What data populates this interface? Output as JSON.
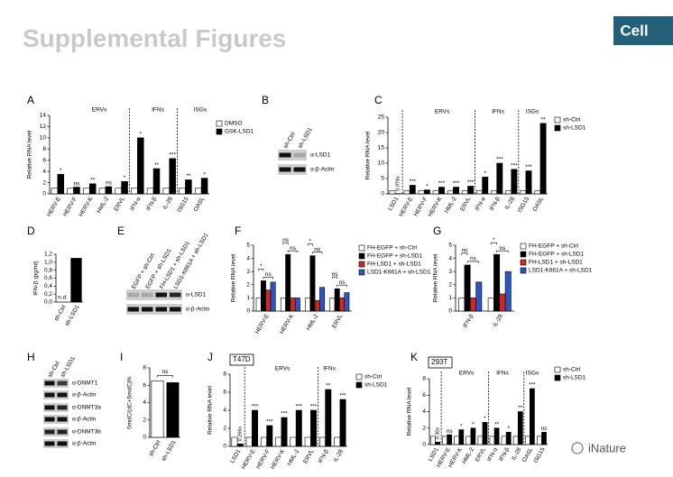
{
  "header": {
    "title": "Supplemental Figures",
    "journal": "Cell"
  },
  "watermark": "iNature",
  "blots": [
    {
      "panel": "B",
      "lanes": [
        "sh-Ctrl",
        "sh-LSD1"
      ],
      "rows": [
        "α-LSD1",
        "α-β-Actin"
      ]
    },
    {
      "panel": "E",
      "lanes": [
        "EGFP + sh-Ctrl",
        "EGFP + sh-LSD1",
        "FH-LSD1 + sh-LSD1",
        "LSD1-K661A + sh-LSD1"
      ],
      "rows": [
        "α-LSD1",
        "α-β-Actin"
      ]
    },
    {
      "panel": "H",
      "lanes": [
        "sh-Ctrl",
        "sh-LSD1"
      ],
      "rows": [
        "α-DNMT1",
        "α-β-Actin",
        "α-DNMT3a",
        "α-β-Actin",
        "α-DNMT3b",
        "α-β-Actin"
      ]
    }
  ],
  "chart_data": [
    {
      "type": "bar",
      "panel": "A",
      "ylabel": "Relative RNA level",
      "groups": [
        "ERVs",
        "IFNs",
        "ISGs"
      ],
      "categories": [
        "HERV-E",
        "HERV-F",
        "HERV-K",
        "HML-2",
        "ERVL",
        "IFN-α",
        "IFN-β",
        "IL-28",
        "ISG15",
        "OASL"
      ],
      "series": [
        {
          "name": "DMSO",
          "color": "#ffffff",
          "values": [
            1,
            1,
            1,
            1,
            1,
            1,
            1,
            1,
            1,
            1
          ]
        },
        {
          "name": "GSK-LSD1",
          "color": "#000000",
          "values": [
            3.5,
            1.2,
            1.8,
            1.3,
            2.2,
            10,
            4.5,
            6.3,
            2.5,
            2.8
          ],
          "significance": [
            "*",
            "ns",
            "**",
            "ns",
            "*",
            "*",
            "**",
            "***",
            "**",
            "*"
          ]
        }
      ],
      "ylim": [
        0,
        14
      ],
      "yticks": [
        0,
        2,
        4,
        6,
        8,
        10,
        12,
        14
      ]
    },
    {
      "type": "bar",
      "panel": "C",
      "ylabel": "Relative RNA level",
      "groups": [
        "ERVs",
        "IFNs",
        "ISGs"
      ],
      "categories": [
        "LSD1",
        "HERV-E",
        "HERV-F",
        "HERV-K",
        "HML-2",
        "ERVL",
        "IFN-α",
        "IFN-β",
        "IL-28",
        "ISG15",
        "OASL"
      ],
      "series": [
        {
          "name": "sh-Ctrl",
          "color": "#ffffff",
          "values": [
            1,
            1,
            1,
            1,
            1,
            1,
            1,
            1,
            1,
            1,
            1
          ]
        },
        {
          "name": "sh-LSD1",
          "color": "#000000",
          "values": [
            0.078,
            2.8,
            1.3,
            2.2,
            2.2,
            2.5,
            5.5,
            10,
            8,
            7.5,
            23
          ],
          "value_labels": [
            "0.078x",
            null,
            null,
            null,
            null,
            null,
            null,
            null,
            null,
            null,
            null
          ],
          "significance": [
            null,
            "***",
            "*",
            "***",
            "***",
            "***",
            "*",
            "***",
            "***",
            "***",
            "**"
          ]
        }
      ],
      "ylim": [
        0,
        25
      ],
      "yticks": [
        0,
        5,
        10,
        15,
        20,
        25
      ]
    },
    {
      "type": "bar",
      "panel": "D",
      "ylabel": "IFN-β (pg/ml)",
      "categories": [
        "sh-Ctrl",
        "sh-LSD1"
      ],
      "values": [
        null,
        1.1
      ],
      "annotations": [
        "n.d.",
        null
      ],
      "colors": [
        "#000000",
        "#000000"
      ],
      "ylim": [
        0,
        1.2
      ],
      "yticks": [
        {
          "value": 0,
          "label": "0,0"
        },
        {
          "value": 0.2,
          "label": "0,2"
        },
        {
          "value": 0.4,
          "label": "0,4"
        },
        {
          "value": 0.6,
          "label": "0,6"
        },
        {
          "value": 0.8,
          "label": "0,8"
        },
        {
          "value": 1,
          "label": "1,0"
        },
        {
          "value": 1.2,
          "label": "1,2"
        }
      ]
    },
    {
      "type": "bar",
      "panel": "F",
      "ylabel": "Relative RNA level",
      "categories": [
        "HERV-E",
        "HERV-K",
        "HML-2",
        "ERVL"
      ],
      "series": [
        {
          "name": "FH-EGFP + sh-Ctrl",
          "color": "#ffffff",
          "values": [
            1,
            1,
            1,
            1
          ]
        },
        {
          "name": "FH-EGFP + sh-LSD1",
          "color": "#000000",
          "values": [
            2.3,
            4.3,
            4.2,
            1.7
          ]
        },
        {
          "name": "FH-LSD1 + sh-LSD1",
          "color": "#d7261e",
          "values": [
            1.6,
            1,
            0.8,
            1
          ]
        },
        {
          "name": "LSD1-K661A + sh-LSD1",
          "color": "#2b55c8",
          "values": [
            2.2,
            1,
            1.8,
            1.4
          ]
        }
      ],
      "brackets": [
        [
          "ns",
          "*"
        ],
        [
          "ns",
          "ns"
        ],
        [
          "ns",
          "*"
        ],
        [
          "ns",
          "ns"
        ]
      ],
      "ylim": [
        0,
        5
      ],
      "yticks": [
        0,
        1,
        2,
        3,
        4,
        5
      ]
    },
    {
      "type": "bar",
      "panel": "G",
      "ylabel": "Relative RNA level",
      "categories": [
        "IFN-β",
        "IL-28"
      ],
      "series": [
        {
          "name": "FH-EGFP + sh-Ctrl",
          "color": "#ffffff",
          "values": [
            1,
            1
          ]
        },
        {
          "name": "FH-EGFP + sh-LSD1",
          "color": "#000000",
          "values": [
            3.5,
            4.3
          ]
        },
        {
          "name": "FH-LSD1 + sh-LSD1",
          "color": "#d7261e",
          "values": [
            1,
            1.3
          ]
        },
        {
          "name": "LSD1-K661A + sh-LSD1",
          "color": "#2b55c8",
          "values": [
            2.2,
            3
          ]
        }
      ],
      "brackets": [
        [
          "ns",
          "ns"
        ],
        [
          "ns",
          "*"
        ]
      ],
      "ylim": [
        0,
        5
      ],
      "yticks": [
        0,
        1,
        2,
        3,
        4,
        5
      ]
    },
    {
      "type": "bar",
      "panel": "I",
      "ylabel": "5mdC/(dC+5mdC)%",
      "categories": [
        "sh-Ctrl",
        "sh-LSD1"
      ],
      "values": [
        6.5,
        6.3
      ],
      "colors": [
        "#ffffff",
        "#000000"
      ],
      "bracket": "ns",
      "ylim": [
        0,
        8
      ],
      "yticks": [
        0,
        2,
        4,
        6,
        8
      ]
    },
    {
      "type": "bar",
      "panel": "J",
      "cell_line": "T47D",
      "ylabel": "Relative RNA level",
      "groups": [
        "ERVs",
        "IFNs"
      ],
      "categories": [
        "LSD1",
        "HERV-E",
        "HERV-F",
        "HERV-K",
        "HML-2",
        "ERVL",
        "IFN-β",
        "IL-28"
      ],
      "series": [
        {
          "name": "sh-Ctrl",
          "color": "#ffffff",
          "values": [
            1,
            1,
            1,
            1,
            1,
            1,
            1,
            1
          ]
        },
        {
          "name": "sh-LSD1",
          "color": "#000000",
          "values": [
            0.266,
            4,
            2.3,
            3.2,
            4,
            4,
            6.3,
            5.2
          ],
          "value_labels": [
            "0.266x",
            null,
            null,
            null,
            null,
            null,
            null,
            null
          ],
          "significance": [
            null,
            "***",
            "***",
            "***",
            "***",
            "***",
            "**",
            "***"
          ]
        }
      ],
      "ylim": [
        0,
        8
      ],
      "yticks": [
        0,
        2,
        4,
        6,
        8
      ]
    },
    {
      "type": "bar",
      "panel": "K",
      "cell_line": "293T",
      "ylabel": "Relative RNA level",
      "groups": [
        "ERVs",
        "IFNs",
        "ISGs"
      ],
      "categories": [
        "LSD1",
        "HERV-E",
        "HERV-K",
        "HML-2",
        "ERVL",
        "IFN-α",
        "IFN-β",
        "IL-28",
        "OASL",
        "ISG15"
      ],
      "series": [
        {
          "name": "sh-Ctrl",
          "color": "#ffffff",
          "values": [
            1,
            1,
            1,
            1,
            1,
            1,
            1,
            1,
            1,
            1
          ]
        },
        {
          "name": "sh-LSD1",
          "color": "#000000",
          "values": [
            0.3,
            1.2,
            1.8,
            2,
            2.7,
            2,
            1.5,
            4,
            6.8,
            1.5
          ],
          "value_labels": [
            "0.30x",
            null,
            null,
            null,
            null,
            null,
            null,
            null,
            null,
            null
          ],
          "significance": [
            null,
            "ns",
            "*",
            "*",
            "*",
            "**",
            "*",
            "**",
            "***",
            "ns"
          ]
        }
      ],
      "ylim": [
        0,
        8
      ],
      "yticks": [
        0,
        2,
        4,
        6,
        8
      ]
    }
  ]
}
